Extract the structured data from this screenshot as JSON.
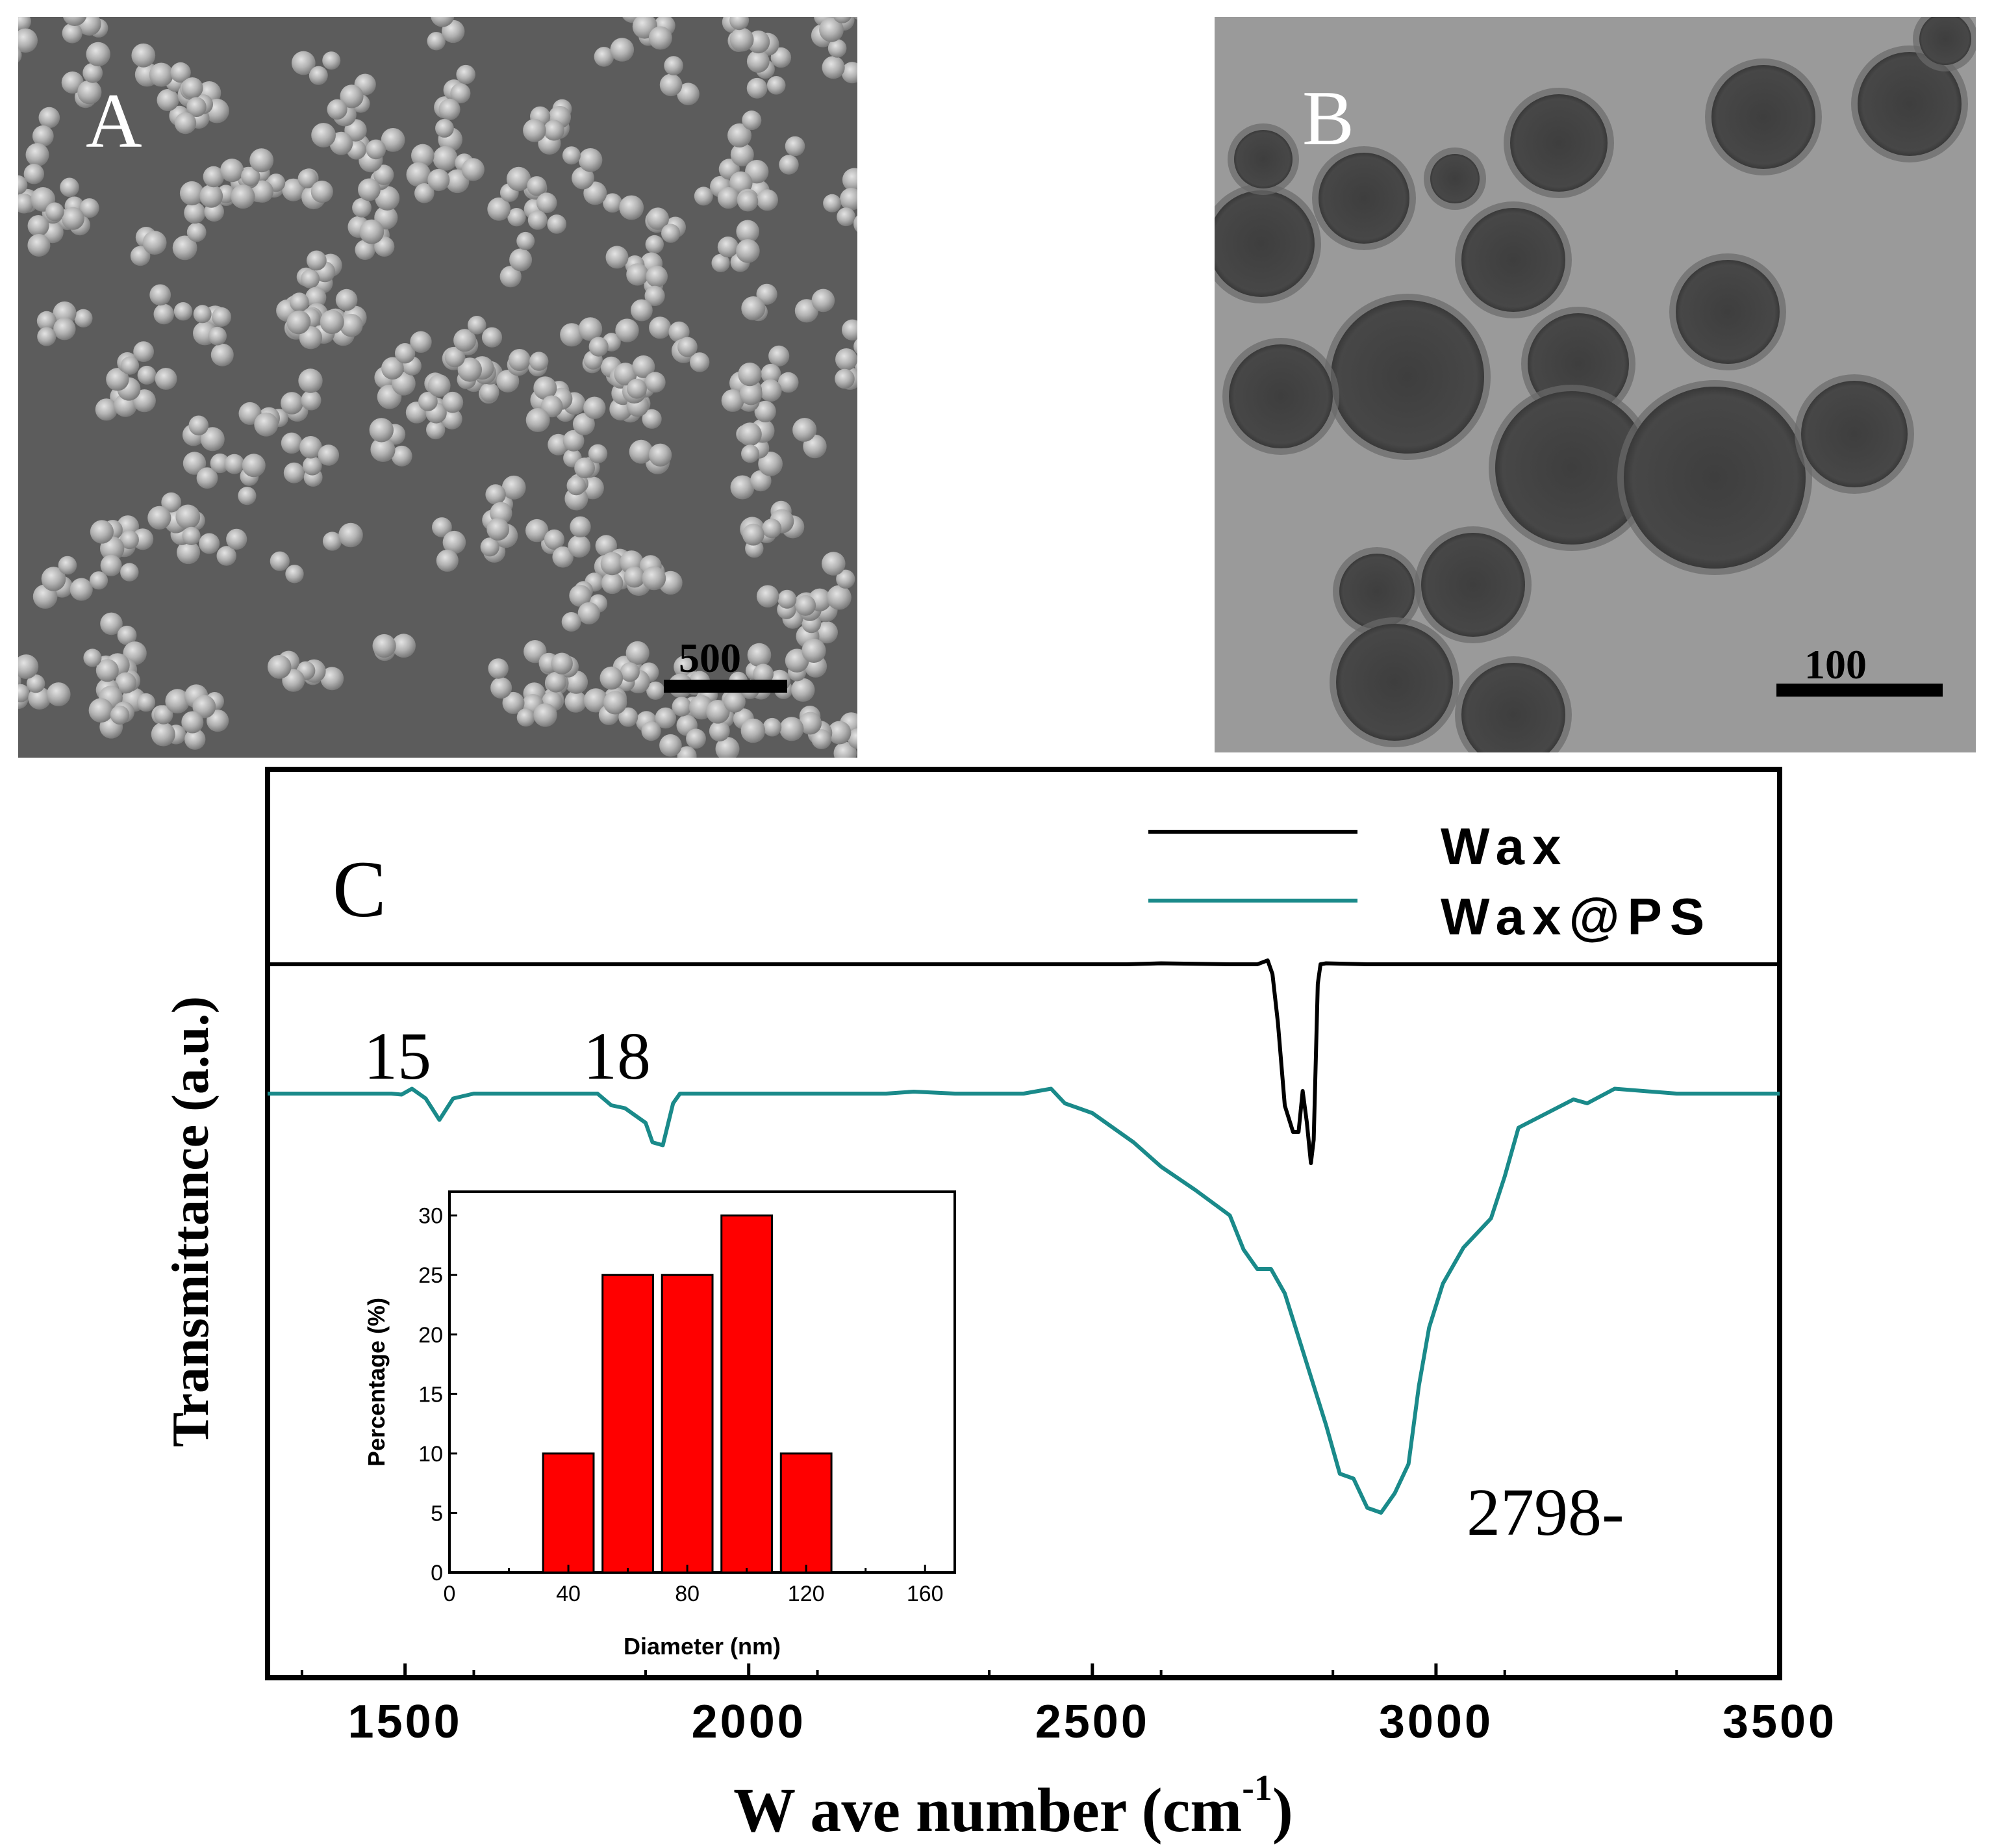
{
  "panels": {
    "A": {
      "label": "A",
      "scale_text": "500"
    },
    "B": {
      "label": "B",
      "scale_text": "100"
    },
    "C": {
      "label": "C"
    }
  },
  "colors": {
    "wax": "#000000",
    "wax_ps": "#1a8a8a",
    "histogram_bar": "#ff0000",
    "sem_background": "#5c5c5c",
    "tem_background": "#9a9a9a"
  },
  "chart_data": [
    {
      "type": "line",
      "panel": "C",
      "xlabel": "Wave number (cm-1)",
      "xlabel_parts": {
        "text": "W ave number (cm",
        "superscript": "-1",
        "close": ")"
      },
      "ylabel": "Transmittance (a.u.)",
      "xlim": [
        1300,
        3500
      ],
      "xticks": [
        1500,
        2000,
        2500,
        3000,
        3500
      ],
      "y_ticks_shown": false,
      "legend": {
        "placement": "top-right",
        "entries": [
          "Wax",
          "Wax@PS"
        ]
      },
      "annotations": [
        "15",
        "18",
        "2798-"
      ],
      "series": [
        {
          "name": "Wax",
          "x": [
            1300,
            1600,
            2000,
            2400,
            2550,
            2600,
            2700,
            2740,
            2755,
            2762,
            2770,
            2780,
            2792,
            2800,
            2806,
            2812,
            2818,
            2822,
            2828,
            2832,
            2840,
            2900,
            3100,
            3500
          ],
          "y": [
            0.0,
            0.0,
            0.0,
            0.0,
            0.0,
            0.01,
            0.0,
            0.0,
            0.04,
            -0.1,
            -0.6,
            -1.45,
            -1.72,
            -1.72,
            -1.3,
            -1.62,
            -2.04,
            -1.8,
            -0.2,
            0.0,
            0.01,
            0.0,
            0.0,
            0.0
          ]
        },
        {
          "name": "Wax@PS",
          "x": [
            1300,
            1480,
            1495,
            1510,
            1530,
            1550,
            1570,
            1600,
            1700,
            1780,
            1800,
            1820,
            1850,
            1860,
            1875,
            1890,
            1900,
            2000,
            2100,
            2200,
            2240,
            2300,
            2400,
            2440,
            2460,
            2480,
            2500,
            2560,
            2600,
            2650,
            2700,
            2720,
            2740,
            2760,
            2780,
            2800,
            2820,
            2840,
            2860,
            2880,
            2900,
            2920,
            2940,
            2960,
            2975,
            2990,
            3010,
            3040,
            3080,
            3100,
            3120,
            3200,
            3220,
            3260,
            3350,
            3500
          ],
          "y": [
            0.0,
            0.0,
            -0.01,
            0.05,
            -0.05,
            -0.27,
            -0.05,
            0.0,
            0.0,
            0.0,
            -0.12,
            -0.15,
            -0.3,
            -0.5,
            -0.53,
            -0.1,
            0.0,
            0.0,
            0.0,
            0.0,
            0.02,
            0.0,
            0.0,
            0.05,
            -0.1,
            -0.15,
            -0.2,
            -0.5,
            -0.75,
            -0.99,
            -1.25,
            -1.6,
            -1.8,
            -1.8,
            -2.05,
            -2.5,
            -2.95,
            -3.4,
            -3.9,
            -3.95,
            -4.25,
            -4.3,
            -4.1,
            -3.8,
            -3.0,
            -2.4,
            -1.95,
            -1.58,
            -1.28,
            -0.85,
            -0.35,
            -0.06,
            -0.1,
            0.05,
            0.0,
            0.0
          ]
        }
      ]
    },
    {
      "type": "bar",
      "panel": "C-inset",
      "xlabel": "Diameter (nm)",
      "ylabel": "Percentage (%)",
      "xlim": [
        0,
        170
      ],
      "ylim": [
        0,
        32
      ],
      "xticks": [
        0,
        40,
        80,
        120,
        160
      ],
      "yticks": [
        0,
        5,
        10,
        15,
        20,
        25,
        30
      ],
      "bar_centers": [
        40,
        60,
        80,
        100,
        120
      ],
      "values": [
        10,
        25,
        25,
        30,
        10
      ]
    }
  ]
}
